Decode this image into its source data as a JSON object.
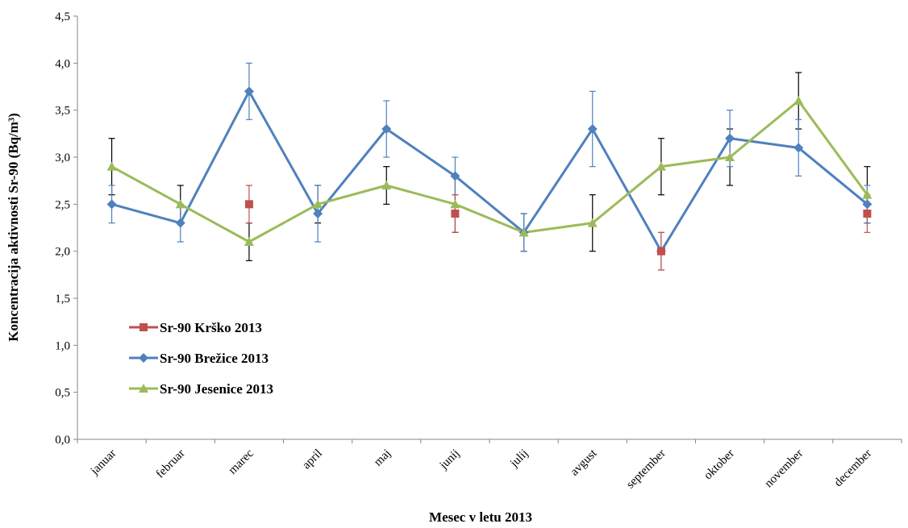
{
  "chart_data": {
    "type": "line",
    "title": "",
    "xlabel": "Mesec v letu 2013",
    "ylabel": "Koncentracija aktivnosti  Sr-90 (Bq/m³)",
    "ylim": [
      0,
      4.5
    ],
    "ytick_step": 0.5,
    "ytick_labels": [
      "0,0",
      "0,5",
      "1,0",
      "1,5",
      "2,0",
      "2,5",
      "3,0",
      "3,5",
      "4,0",
      "4,5"
    ],
    "categories": [
      "januar",
      "februar",
      "marec",
      "april",
      "maj",
      "junij",
      "julij",
      "avgust",
      "september",
      "oktober",
      "november",
      "december"
    ],
    "grid": false,
    "legend_position": "bottom-left",
    "series": [
      {
        "name": "Sr-90 Krško 2013",
        "color": "#c0504d",
        "marker": "square",
        "line": false,
        "values": [
          null,
          null,
          2.5,
          null,
          null,
          2.4,
          null,
          null,
          2.0,
          null,
          null,
          2.4
        ],
        "errors": [
          null,
          null,
          0.2,
          null,
          null,
          0.2,
          null,
          null,
          0.2,
          null,
          null,
          0.2
        ]
      },
      {
        "name": "Sr-90 Brežice 2013",
        "color": "#4f81bd",
        "marker": "diamond",
        "line": true,
        "values": [
          2.5,
          2.3,
          3.7,
          2.4,
          3.3,
          2.8,
          2.2,
          3.3,
          2.0,
          3.2,
          3.1,
          2.5
        ],
        "errors": [
          0.2,
          0.2,
          0.3,
          0.3,
          0.3,
          0.2,
          0.2,
          0.4,
          0.2,
          0.3,
          0.3,
          0.2
        ]
      },
      {
        "name": "Sr-90 Jesenice 2013",
        "color": "#9bbb59",
        "marker": "triangle",
        "line": true,
        "values": [
          2.9,
          2.5,
          2.1,
          2.5,
          2.7,
          2.5,
          2.2,
          2.3,
          2.9,
          3.0,
          3.6,
          2.6
        ],
        "errors": [
          0.3,
          0.2,
          0.2,
          0.2,
          0.2,
          0.3,
          0.2,
          0.3,
          0.3,
          0.3,
          0.3,
          0.3
        ]
      }
    ]
  }
}
